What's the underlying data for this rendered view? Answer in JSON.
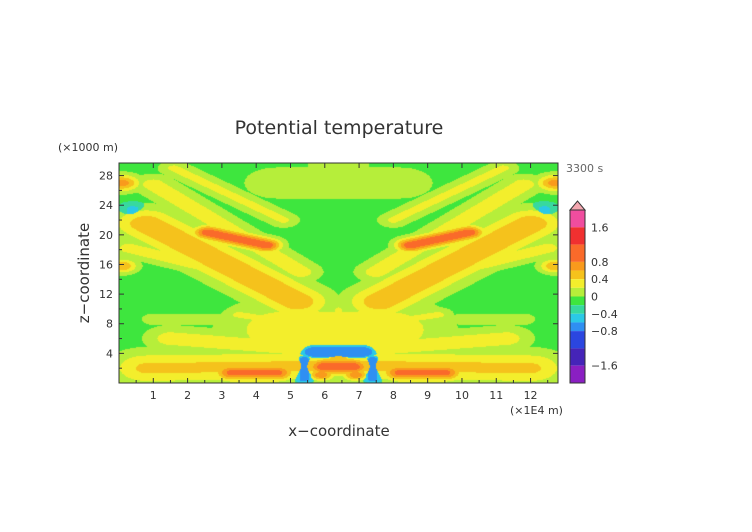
{
  "chart_data": {
    "type": "heatmap",
    "title": "Potential temperature",
    "xlabel": "x−coordinate",
    "ylabel": "z−coordinate",
    "x_unit": "(×1E4 m)",
    "y_unit": "(×1000 m)",
    "time_label": "3300 s",
    "xlim": [
      0,
      12.8
    ],
    "ylim": [
      0,
      29.7
    ],
    "xticks": [
      1,
      2,
      3,
      4,
      5,
      6,
      7,
      8,
      9,
      10,
      11,
      12
    ],
    "yticks": [
      4,
      8,
      12,
      16,
      20,
      24,
      28
    ],
    "grid": false,
    "colorbar": {
      "position": "right",
      "tick_labels": [
        "1.6",
        "0.8",
        "0.4",
        "0",
        "−0.4",
        "−0.8",
        "−1.6"
      ],
      "tick_values": [
        1.6,
        0.8,
        0.4,
        0,
        -0.4,
        -0.8,
        -1.6
      ],
      "levels": [
        {
          "min": 1.6,
          "color": "#f04d9f"
        },
        {
          "min": 1.2,
          "color": "#f03030"
        },
        {
          "min": 0.8,
          "color": "#fa6a2a"
        },
        {
          "min": 0.6,
          "color": "#f99a1c"
        },
        {
          "min": 0.4,
          "color": "#f5c21c"
        },
        {
          "min": 0.2,
          "color": "#f3ee2c"
        },
        {
          "min": 0.0,
          "color": "#b6ee3a"
        },
        {
          "min": -0.2,
          "color": "#3ee63e"
        },
        {
          "min": -0.4,
          "color": "#37d99e"
        },
        {
          "min": -0.6,
          "color": "#2bc9e6"
        },
        {
          "min": -0.8,
          "color": "#2f8ff2"
        },
        {
          "min": -1.2,
          "color": "#2b46e0"
        },
        {
          "min": -1.6,
          "color": "#4524b8"
        },
        {
          "min": -99,
          "color": "#8a1fc2"
        }
      ]
    },
    "background_value": -0.1,
    "features": [
      {
        "kind": "band",
        "x0": 0.8,
        "z0": 21.5,
        "x1": 5.2,
        "z1": 11.0,
        "width": 0.65,
        "value": 0.55
      },
      {
        "kind": "band",
        "x0": 12.0,
        "z0": 21.5,
        "x1": 7.6,
        "z1": 11.0,
        "width": 0.65,
        "value": 0.55
      },
      {
        "kind": "band",
        "x0": 2.6,
        "z0": 20.3,
        "x1": 4.3,
        "z1": 18.6,
        "width": 0.3,
        "value": 1.0
      },
      {
        "kind": "band",
        "x0": 10.2,
        "z0": 20.3,
        "x1": 8.5,
        "z1": 18.6,
        "width": 0.3,
        "value": 1.0
      },
      {
        "kind": "band",
        "x0": 1.0,
        "z0": 26.8,
        "x1": 5.3,
        "z1": 15.0,
        "width": 0.4,
        "value": 0.3
      },
      {
        "kind": "band",
        "x0": 11.8,
        "z0": 26.8,
        "x1": 7.5,
        "z1": 15.0,
        "width": 0.4,
        "value": 0.3
      },
      {
        "kind": "band",
        "x0": 1.6,
        "z0": 29.0,
        "x1": 4.8,
        "z1": 22.0,
        "width": 0.3,
        "value": 0.25
      },
      {
        "kind": "band",
        "x0": 11.2,
        "z0": 29.0,
        "x1": 8.0,
        "z1": 22.0,
        "width": 0.3,
        "value": 0.25
      },
      {
        "kind": "band",
        "x0": 0.3,
        "z0": 18.2,
        "x1": 4.2,
        "z1": 13.8,
        "width": 0.35,
        "value": 0.3
      },
      {
        "kind": "band",
        "x0": 12.5,
        "z0": 18.2,
        "x1": 8.6,
        "z1": 13.8,
        "width": 0.35,
        "value": 0.3
      },
      {
        "kind": "band",
        "x0": 1.6,
        "z0": 24.5,
        "x1": 4.6,
        "z1": 16.5,
        "width": 0.22,
        "value": -0.35
      },
      {
        "kind": "band",
        "x0": 11.2,
        "z0": 24.5,
        "x1": 8.2,
        "z1": 16.5,
        "width": 0.22,
        "value": -0.35
      },
      {
        "kind": "band",
        "x0": 0.4,
        "z0": 23.5,
        "x1": 0.4,
        "z1": 22.5,
        "width": 0.3,
        "value": -0.45
      },
      {
        "kind": "band",
        "x0": 12.4,
        "z0": 23.5,
        "x1": 12.4,
        "z1": 22.5,
        "width": 0.3,
        "value": -0.45
      },
      {
        "kind": "band",
        "x0": 4.8,
        "z0": 7.2,
        "x1": 7.8,
        "z1": 7.2,
        "width": 1.2,
        "value": 0.35
      },
      {
        "kind": "band",
        "x0": 0.8,
        "z0": 2.0,
        "x1": 5.7,
        "z1": 2.3,
        "width": 0.7,
        "value": 0.45
      },
      {
        "kind": "band",
        "x0": 12.0,
        "z0": 2.0,
        "x1": 7.1,
        "z1": 2.3,
        "width": 0.7,
        "value": 0.45
      },
      {
        "kind": "band",
        "x0": 3.3,
        "z0": 1.4,
        "x1": 4.6,
        "z1": 1.4,
        "width": 0.35,
        "value": 0.9
      },
      {
        "kind": "band",
        "x0": 9.5,
        "z0": 1.4,
        "x1": 8.2,
        "z1": 1.4,
        "width": 0.35,
        "value": 0.9
      },
      {
        "kind": "band",
        "x0": 1.5,
        "z0": 6.0,
        "x1": 5.4,
        "z1": 4.6,
        "width": 0.5,
        "value": 0.3
      },
      {
        "kind": "band",
        "x0": 11.3,
        "z0": 6.0,
        "x1": 7.4,
        "z1": 4.6,
        "width": 0.5,
        "value": 0.3
      },
      {
        "kind": "band",
        "x0": 2.8,
        "z0": 4.9,
        "x1": 5.6,
        "z1": 3.6,
        "width": 0.35,
        "value": -0.35
      },
      {
        "kind": "band",
        "x0": 10.0,
        "z0": 4.9,
        "x1": 7.2,
        "z1": 3.6,
        "width": 0.35,
        "value": -0.35
      },
      {
        "kind": "band",
        "x0": 5.7,
        "z0": 4.2,
        "x1": 7.1,
        "z1": 4.2,
        "width": 0.35,
        "value": -0.8
      },
      {
        "kind": "band",
        "x0": 6.0,
        "z0": 2.2,
        "x1": 6.8,
        "z1": 2.2,
        "width": 0.35,
        "value": 1.0
      },
      {
        "kind": "band",
        "x0": 5.4,
        "z0": 3.2,
        "x1": 5.4,
        "z1": 0.5,
        "width": 0.22,
        "value": -0.7
      },
      {
        "kind": "band",
        "x0": 7.4,
        "z0": 3.2,
        "x1": 7.4,
        "z1": 0.5,
        "width": 0.22,
        "value": -0.7
      },
      {
        "kind": "band",
        "x0": 5.7,
        "z0": 9.6,
        "x1": 6.0,
        "z1": 6.6,
        "width": 0.15,
        "value": 0.35
      },
      {
        "kind": "band",
        "x0": 7.1,
        "z0": 9.6,
        "x1": 6.8,
        "z1": 6.6,
        "width": 0.15,
        "value": 0.35
      },
      {
        "kind": "band",
        "x0": 6.4,
        "z0": 10.0,
        "x1": 6.4,
        "z1": 7.0,
        "width": 0.12,
        "value": 0.3
      },
      {
        "kind": "band",
        "x0": 4.6,
        "z0": 27.0,
        "x1": 8.2,
        "z1": 27.0,
        "width": 0.8,
        "value": 0.1
      },
      {
        "kind": "band",
        "x0": 6.1,
        "z0": 29.5,
        "x1": 6.7,
        "z1": 29.5,
        "width": 0.5,
        "value": 0.1
      },
      {
        "kind": "band",
        "x0": 3.5,
        "z0": 9.2,
        "x1": 5.0,
        "z1": 8.2,
        "width": 0.3,
        "value": 0.25
      },
      {
        "kind": "band",
        "x0": 9.3,
        "z0": 9.2,
        "x1": 7.8,
        "z1": 8.2,
        "width": 0.3,
        "value": 0.25
      },
      {
        "kind": "band",
        "x0": 1.0,
        "z0": 8.6,
        "x1": 2.8,
        "z1": 8.6,
        "width": 0.25,
        "value": 0.15
      },
      {
        "kind": "band",
        "x0": 11.8,
        "z0": 8.6,
        "x1": 10.0,
        "z1": 8.6,
        "width": 0.25,
        "value": 0.15
      },
      {
        "kind": "blob",
        "x": 0.1,
        "z": 27.0,
        "r": 0.35,
        "value": 0.7
      },
      {
        "kind": "blob",
        "x": 12.7,
        "z": 27.0,
        "r": 0.35,
        "value": 0.7
      },
      {
        "kind": "blob",
        "x": 0.1,
        "z": 15.8,
        "r": 0.3,
        "value": 0.6
      },
      {
        "kind": "blob",
        "x": 12.7,
        "z": 15.8,
        "r": 0.3,
        "value": 0.6
      },
      {
        "kind": "blob",
        "x": 6.4,
        "z": 3.0,
        "r": 0.35,
        "value": 0.6
      },
      {
        "kind": "blob",
        "x": 5.9,
        "z": 1.1,
        "r": 0.25,
        "value": 0.8
      },
      {
        "kind": "blob",
        "x": 6.9,
        "z": 1.1,
        "r": 0.25,
        "value": 0.8
      }
    ]
  }
}
